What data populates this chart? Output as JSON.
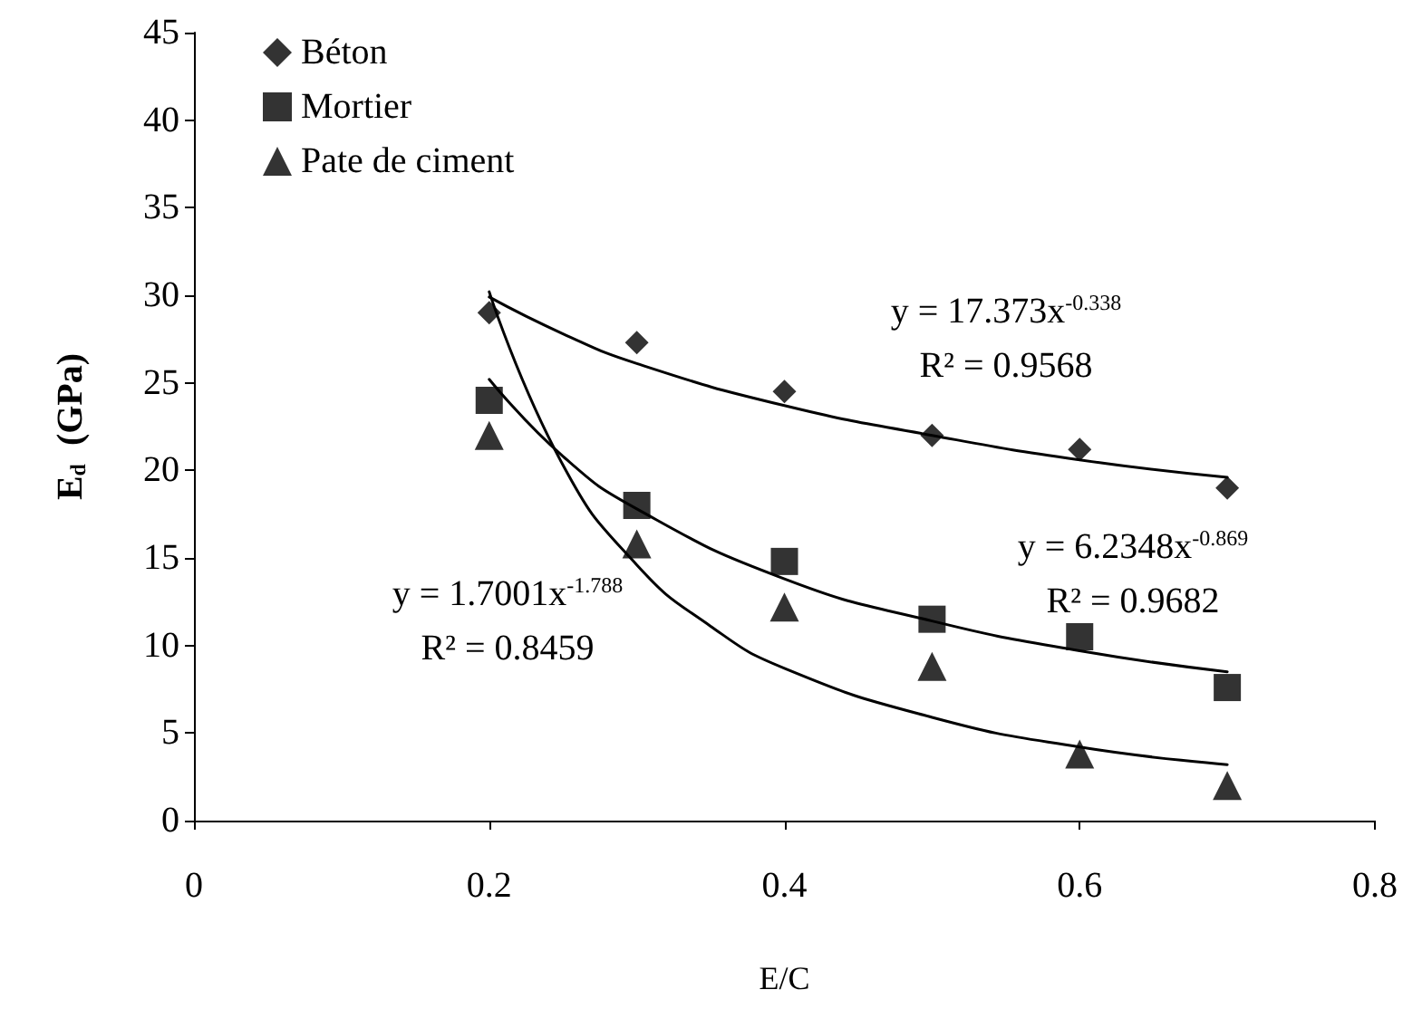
{
  "chart_data": {
    "type": "scatter",
    "xlabel": "E/C",
    "ylabel": "E$_{d}$  (GPa)",
    "xlim": [
      0,
      0.8
    ],
    "xticks": [
      0,
      0.2,
      0.4,
      0.6,
      0.8
    ],
    "ylim": [
      0,
      45
    ],
    "yticks": [
      0,
      5,
      10,
      15,
      20,
      25,
      30,
      35,
      40,
      45
    ],
    "grid": false,
    "legend": "top left",
    "series": [
      {
        "name": "Béton",
        "color": "#000000",
        "marker": "diamond",
        "x": [
          0.2,
          0.3,
          0.4,
          0.5,
          0.6,
          0.7
        ],
        "values": [
          29,
          27.3,
          24.5,
          22,
          21.2,
          19
        ]
      },
      {
        "name": "Mortier",
        "color": "#000000",
        "marker": "square",
        "x": [
          0.2,
          0.3,
          0.4,
          0.5,
          0.6,
          0.7
        ],
        "values": [
          24,
          18,
          14.8,
          11.5,
          10.5,
          7.6
        ]
      },
      {
        "name": "Pate de ciment",
        "color": "#000000",
        "marker": "triangle",
        "x": [
          0.2,
          0.3,
          0.4,
          0.5,
          0.6,
          0.7
        ],
        "values": [
          22,
          15.8,
          12.2,
          8.8,
          3.8,
          2
        ]
      },
      {
        "type": "line",
        "color": "#000000",
        "marker": "none",
        "x": [
          0.2,
          0.25,
          0.3,
          0.4,
          0.5,
          0.6,
          0.7
        ],
        "values": [
          29.9,
          27.8,
          26.1,
          23.7,
          22,
          20.6,
          19.6
        ]
      },
      {
        "type": "line",
        "color": "#000000",
        "marker": "none",
        "x": [
          0.2,
          0.25,
          0.3,
          0.4,
          0.5,
          0.6,
          0.7
        ],
        "values": [
          25.2,
          20.8,
          17.8,
          13.8,
          11.4,
          9.7,
          8.5
        ]
      },
      {
        "type": "line",
        "color": "#000000",
        "marker": "none",
        "x": [
          0.2,
          0.25,
          0.3,
          0.35,
          0.4,
          0.5,
          0.6,
          0.7
        ],
        "values": [
          30.2,
          20.3,
          14.6,
          11.1,
          8.7,
          5.9,
          4.2,
          3.2
        ]
      }
    ],
    "annotations": [
      "y = 17.373x$^{-0.338}$",
      "R² = 0.9568",
      "y = 6.2348x$^{-0.869}$",
      "R² = 0.9682",
      "y = 1.7001x$^{-1.788}$",
      "R² = 0.8459"
    ]
  }
}
